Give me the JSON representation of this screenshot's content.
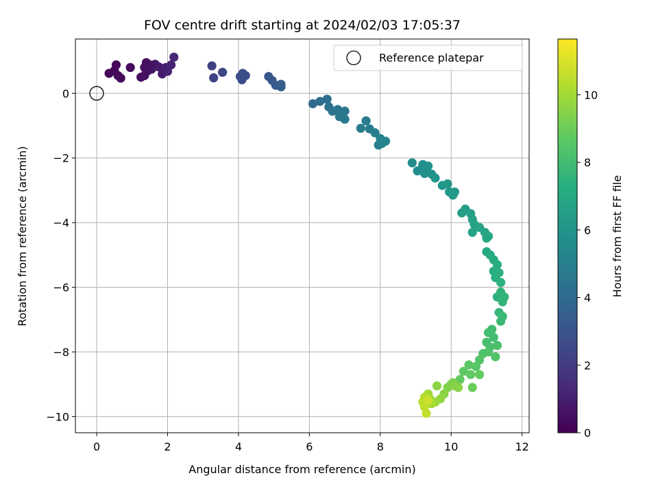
{
  "chart_data": {
    "type": "scatter",
    "title": "FOV centre drift starting at 2024/02/03 17:05:37",
    "xlabel": "Angular distance from reference (arcmin)",
    "ylabel": "Rotation from reference (arcmin)",
    "xlim": [
      -0.6,
      12.2
    ],
    "ylim": [
      -10.5,
      1.68
    ],
    "xticks": [
      0,
      2,
      4,
      6,
      8,
      10,
      12
    ],
    "xtick_labels": [
      "0",
      "2",
      "4",
      "6",
      "8",
      "10",
      "12"
    ],
    "yticks": [
      0,
      -2,
      -4,
      -6,
      -8,
      -10
    ],
    "ytick_labels": [
      "0",
      "−2",
      "−4",
      "−6",
      "−8",
      "−10"
    ],
    "grid": true,
    "legend": {
      "position": "top-right",
      "entries": [
        "Reference platepar"
      ]
    },
    "reference_point": {
      "x": 0,
      "y": 0,
      "label": "Reference platepar"
    },
    "colorbar": {
      "label": "Hours from first FF file",
      "colormap": "viridis",
      "range": [
        0,
        11.65
      ],
      "ticks": [
        0,
        2,
        4,
        6,
        8,
        10
      ],
      "tick_labels": [
        "0",
        "2",
        "4",
        "6",
        "8",
        "10"
      ]
    },
    "points": [
      [
        0.35,
        0.62,
        0.1
      ],
      [
        0.5,
        0.7,
        0.15
      ],
      [
        0.55,
        0.88,
        0.2
      ],
      [
        0.6,
        0.55,
        0.25
      ],
      [
        0.68,
        0.47,
        0.3
      ],
      [
        0.95,
        0.8,
        0.35
      ],
      [
        1.25,
        0.5,
        0.4
      ],
      [
        1.35,
        0.55,
        0.45
      ],
      [
        1.35,
        0.8,
        0.5
      ],
      [
        1.4,
        0.95,
        0.55
      ],
      [
        1.45,
        0.7,
        0.6
      ],
      [
        1.5,
        0.85,
        0.65
      ],
      [
        1.55,
        0.75,
        0.7
      ],
      [
        1.65,
        0.9,
        0.75
      ],
      [
        1.75,
        0.82,
        0.8
      ],
      [
        1.85,
        0.6,
        0.9
      ],
      [
        1.95,
        0.8,
        1.0
      ],
      [
        2.0,
        0.68,
        1.1
      ],
      [
        2.1,
        0.88,
        1.2
      ],
      [
        2.18,
        1.12,
        1.3
      ],
      [
        1.4,
        0.72,
        0.5
      ],
      [
        1.5,
        0.88,
        0.55
      ],
      [
        3.25,
        0.85,
        2.2
      ],
      [
        3.3,
        0.48,
        2.3
      ],
      [
        3.55,
        0.65,
        2.4
      ],
      [
        4.05,
        0.52,
        2.6
      ],
      [
        4.1,
        0.42,
        2.7
      ],
      [
        4.12,
        0.62,
        2.75
      ],
      [
        4.2,
        0.55,
        2.8
      ],
      [
        4.85,
        0.52,
        3.1
      ],
      [
        4.95,
        0.4,
        3.2
      ],
      [
        5.05,
        0.25,
        3.3
      ],
      [
        5.2,
        0.28,
        3.4
      ],
      [
        5.2,
        0.2,
        3.45
      ],
      [
        6.1,
        -0.32,
        4.0
      ],
      [
        6.3,
        -0.25,
        4.1
      ],
      [
        6.5,
        -0.18,
        4.2
      ],
      [
        6.55,
        -0.42,
        4.3
      ],
      [
        6.65,
        -0.55,
        4.4
      ],
      [
        6.8,
        -0.5,
        4.5
      ],
      [
        6.85,
        -0.72,
        4.55
      ],
      [
        6.9,
        -0.6,
        4.6
      ],
      [
        7.0,
        -0.55,
        4.65
      ],
      [
        7.0,
        -0.8,
        4.7
      ],
      [
        7.45,
        -1.08,
        4.8
      ],
      [
        7.6,
        -0.85,
        4.85
      ],
      [
        7.7,
        -1.1,
        4.9
      ],
      [
        7.85,
        -1.22,
        5.0
      ],
      [
        7.95,
        -1.6,
        5.05
      ],
      [
        8.0,
        -1.4,
        5.1
      ],
      [
        8.05,
        -1.55,
        5.15
      ],
      [
        8.15,
        -1.48,
        5.2
      ],
      [
        8.9,
        -2.15,
        5.6
      ],
      [
        9.05,
        -2.4,
        5.65
      ],
      [
        9.15,
        -2.35,
        5.7
      ],
      [
        9.2,
        -2.2,
        5.75
      ],
      [
        9.25,
        -2.48,
        5.8
      ],
      [
        9.3,
        -2.3,
        5.85
      ],
      [
        9.35,
        -2.25,
        5.9
      ],
      [
        9.45,
        -2.5,
        5.95
      ],
      [
        9.55,
        -2.62,
        6.0
      ],
      [
        9.75,
        -2.85,
        6.1
      ],
      [
        9.9,
        -2.8,
        6.15
      ],
      [
        9.95,
        -3.05,
        6.2
      ],
      [
        10.05,
        -3.15,
        6.25
      ],
      [
        10.1,
        -3.05,
        6.3
      ],
      [
        10.3,
        -3.7,
        6.5
      ],
      [
        10.4,
        -3.58,
        6.55
      ],
      [
        10.55,
        -3.72,
        6.6
      ],
      [
        10.6,
        -3.9,
        6.65
      ],
      [
        10.65,
        -4.05,
        6.7
      ],
      [
        10.6,
        -4.3,
        6.75
      ],
      [
        10.8,
        -4.15,
        6.8
      ],
      [
        10.95,
        -4.3,
        6.85
      ],
      [
        11.0,
        -4.48,
        6.9
      ],
      [
        11.05,
        -4.42,
        6.95
      ],
      [
        11.0,
        -4.9,
        7.05
      ],
      [
        11.1,
        -5.0,
        7.1
      ],
      [
        11.2,
        -5.15,
        7.15
      ],
      [
        11.2,
        -5.5,
        7.2
      ],
      [
        11.3,
        -5.3,
        7.25
      ],
      [
        11.25,
        -5.7,
        7.3
      ],
      [
        11.35,
        -5.55,
        7.35
      ],
      [
        11.4,
        -5.85,
        7.4
      ],
      [
        11.3,
        -6.3,
        7.45
      ],
      [
        11.4,
        -6.15,
        7.5
      ],
      [
        11.5,
        -6.3,
        7.55
      ],
      [
        11.45,
        -6.45,
        7.6
      ],
      [
        11.35,
        -6.78,
        7.7
      ],
      [
        11.45,
        -6.9,
        7.75
      ],
      [
        11.4,
        -7.05,
        7.8
      ],
      [
        11.15,
        -7.3,
        8.0
      ],
      [
        11.05,
        -7.4,
        8.05
      ],
      [
        11.2,
        -7.55,
        8.1
      ],
      [
        11.0,
        -7.7,
        8.15
      ],
      [
        11.1,
        -7.85,
        8.2
      ],
      [
        11.3,
        -7.8,
        8.25
      ],
      [
        10.9,
        -8.05,
        8.3
      ],
      [
        11.05,
        -8.0,
        8.35
      ],
      [
        11.25,
        -8.15,
        8.4
      ],
      [
        10.8,
        -8.25,
        8.45
      ],
      [
        10.7,
        -8.45,
        8.55
      ],
      [
        10.5,
        -8.4,
        8.6
      ],
      [
        10.35,
        -8.6,
        8.7
      ],
      [
        10.55,
        -8.7,
        8.75
      ],
      [
        10.25,
        -8.85,
        8.8
      ],
      [
        10.8,
        -8.7,
        8.85
      ],
      [
        10.6,
        -9.1,
        8.95
      ],
      [
        10.05,
        -8.95,
        9.3
      ],
      [
        10.0,
        -9.0,
        9.35
      ],
      [
        9.9,
        -9.1,
        9.4
      ],
      [
        10.1,
        -9.05,
        9.45
      ],
      [
        10.2,
        -9.1,
        9.5
      ],
      [
        9.8,
        -9.3,
        9.55
      ],
      [
        9.6,
        -9.05,
        9.6
      ],
      [
        9.7,
        -9.45,
        9.7
      ],
      [
        9.55,
        -9.55,
        9.8
      ],
      [
        9.4,
        -9.45,
        9.9
      ],
      [
        9.35,
        -9.3,
        10.0
      ],
      [
        9.45,
        -9.6,
        10.1
      ],
      [
        9.3,
        -9.6,
        10.2
      ],
      [
        9.25,
        -9.4,
        10.3
      ],
      [
        9.2,
        -9.55,
        10.4
      ],
      [
        9.25,
        -9.7,
        10.5
      ],
      [
        9.3,
        -9.9,
        10.6
      ],
      [
        9.35,
        -9.5,
        10.7
      ]
    ]
  }
}
